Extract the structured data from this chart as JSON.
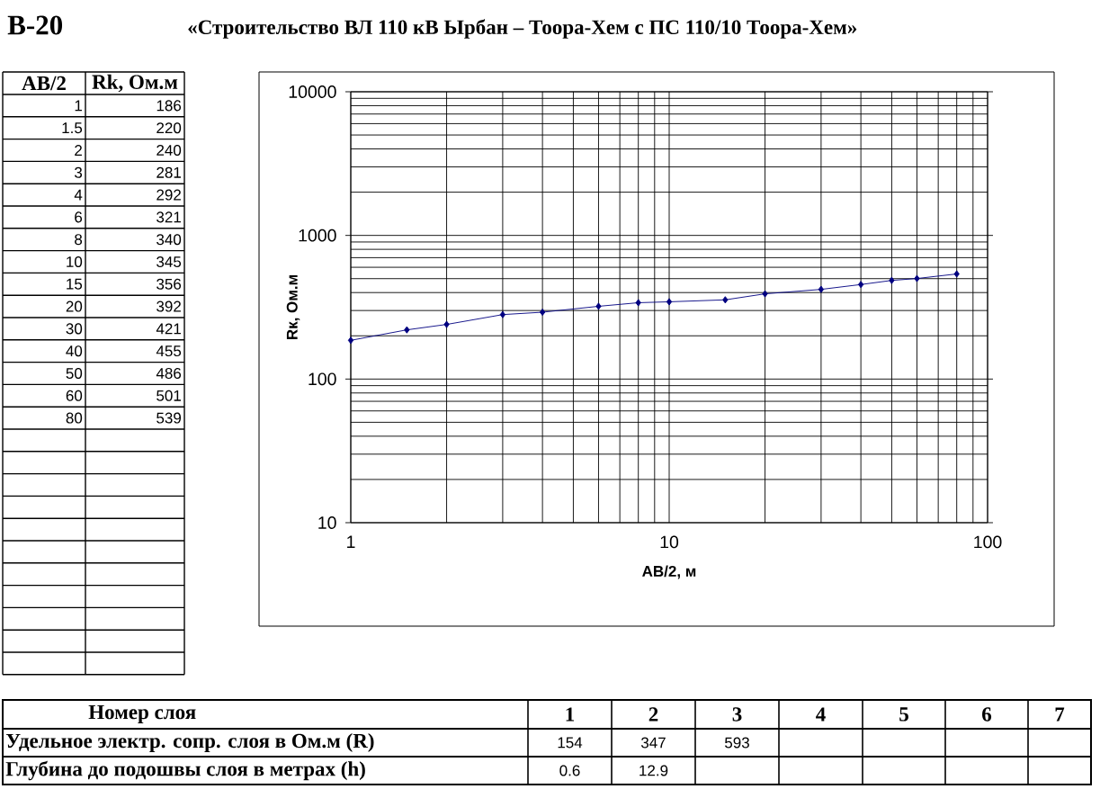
{
  "chart_data": {
    "type": "line",
    "title": "В-20",
    "subtitle": "«Строительство ВЛ 110 кВ Ырбан – Тоора-Хем с ПС 110/10 Тоора-Хем»",
    "xlabel": "AB/2, м",
    "ylabel": "Rк, Ом.м",
    "x": [
      1,
      1.5,
      2,
      3,
      4,
      6,
      8,
      10,
      15,
      20,
      30,
      40,
      50,
      60,
      80
    ],
    "values": [
      186,
      220,
      240,
      281,
      292,
      321,
      340,
      345,
      356,
      392,
      421,
      455,
      486,
      501,
      539
    ],
    "color": "#000080",
    "marker": "diamond",
    "line_style": "solid",
    "xlim": [
      1,
      100
    ],
    "ylim": [
      10,
      10000
    ],
    "xticks": [
      1,
      10,
      100
    ],
    "yticks": [
      10,
      100,
      1000,
      10000
    ],
    "log": "xy",
    "grid": true,
    "annotations": [
      "AB/2",
      "Rk, Ом.м",
      "1",
      "186",
      "1.5",
      "220",
      "2",
      "240",
      "3",
      "281",
      "4",
      "292",
      "6",
      "321",
      "8",
      "340",
      "10",
      "345",
      "15",
      "356",
      "20",
      "392",
      "30",
      "421",
      "40",
      "455",
      "50",
      "486",
      "60",
      "501",
      "80",
      "539",
      "Номер слоя",
      "1",
      "2",
      "3",
      "4",
      "5",
      "6",
      "7",
      "Удельное электр. сопр. слоя в Ом.м (R)",
      "154",
      "347",
      "593",
      "Глубина до подошвы слоя в метрах (h)",
      "0.6",
      "12.9"
    ]
  }
}
